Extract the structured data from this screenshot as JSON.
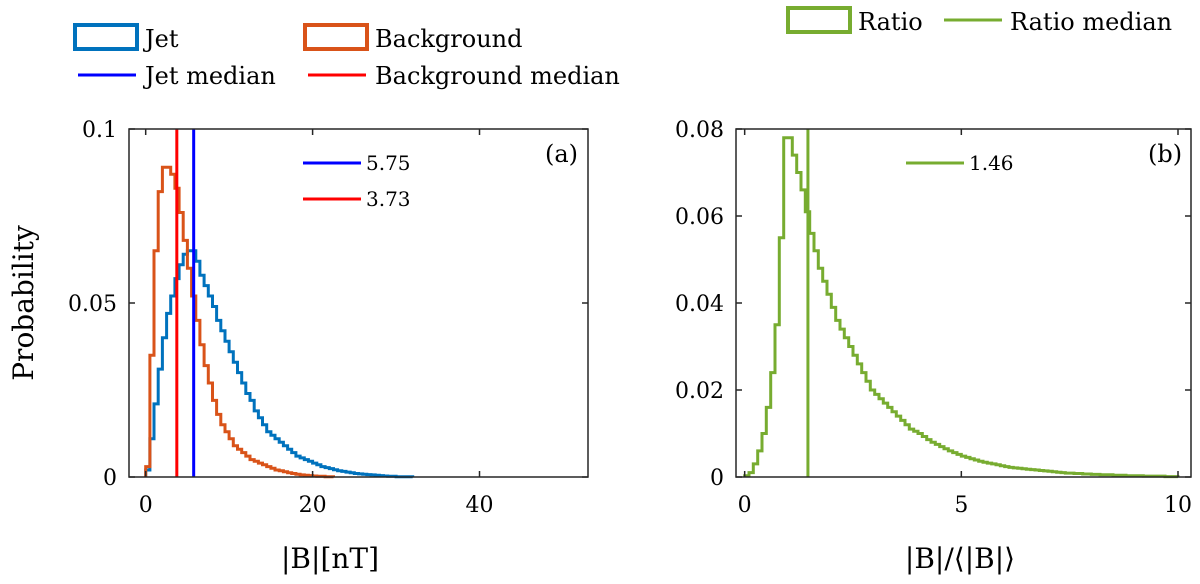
{
  "chart_data": [
    {
      "panel_label": "(a)",
      "type": "line",
      "subtype": "stairs-histogram",
      "xlabel": "|B|[nT]",
      "ylabel": "Probability",
      "xlim": [
        -2,
        53
      ],
      "ylim": [
        0,
        0.1
      ],
      "xticks": [
        0,
        20,
        40
      ],
      "xtick_labels": [
        "0",
        "20",
        "40"
      ],
      "yticks": [
        0,
        0.05,
        0.1
      ],
      "ytick_labels": [
        "0",
        "0.05",
        "0.1"
      ],
      "grid": false,
      "bin_width": 0.5,
      "series": [
        {
          "name": "Jet",
          "color": "#0072bd",
          "bin_edges_start": 0,
          "values": [
            0.002,
            0.011,
            0.021,
            0.031,
            0.04,
            0.047,
            0.052,
            0.057,
            0.061,
            0.064,
            0.065,
            0.065,
            0.062,
            0.058,
            0.055,
            0.052,
            0.049,
            0.045,
            0.042,
            0.039,
            0.036,
            0.033,
            0.03,
            0.027,
            0.024,
            0.022,
            0.019,
            0.017,
            0.015,
            0.013,
            0.012,
            0.011,
            0.01,
            0.009,
            0.008,
            0.007,
            0.006,
            0.0055,
            0.005,
            0.0045,
            0.004,
            0.0035,
            0.003,
            0.0027,
            0.0024,
            0.0021,
            0.0018,
            0.0016,
            0.0014,
            0.0012,
            0.001,
            0.0009,
            0.0008,
            0.0007,
            0.0006,
            0.0005,
            0.0004,
            0.0003,
            0.0002,
            0.0002,
            0.0001,
            0.0001,
            0.0001,
            0.0001
          ]
        },
        {
          "name": "Background",
          "color": "#d95319",
          "bin_edges_start": 0,
          "values": [
            0.003,
            0.035,
            0.065,
            0.082,
            0.089,
            0.089,
            0.087,
            0.083,
            0.076,
            0.068,
            0.06,
            0.052,
            0.045,
            0.038,
            0.032,
            0.027,
            0.022,
            0.018,
            0.015,
            0.013,
            0.011,
            0.009,
            0.008,
            0.007,
            0.006,
            0.005,
            0.0045,
            0.004,
            0.0035,
            0.003,
            0.0025,
            0.002,
            0.0018,
            0.0015,
            0.0012,
            0.001,
            0.0008,
            0.0006,
            0.0005,
            0.0004,
            0.0003,
            0.0002,
            0.0002,
            0.0001,
            0.0001
          ]
        }
      ],
      "medians": [
        {
          "name": "Jet median",
          "value": 5.75,
          "label": "5.75",
          "color": "#0000ff"
        },
        {
          "name": "Background median",
          "value": 3.73,
          "label": "3.73",
          "color": "#ff0000"
        }
      ]
    },
    {
      "panel_label": "(b)",
      "type": "line",
      "subtype": "stairs-histogram",
      "xlabel": "|B|/⟨|B|⟩",
      "ylabel": "",
      "xlim": [
        -0.2,
        10.3
      ],
      "ylim": [
        0,
        0.08
      ],
      "xticks": [
        0,
        5,
        10
      ],
      "xtick_labels": [
        "0",
        "5",
        "10"
      ],
      "yticks": [
        0,
        0.02,
        0.04,
        0.06,
        0.08
      ],
      "ytick_labels": [
        "0",
        "0.02",
        "0.04",
        "0.06",
        "0.08"
      ],
      "grid": false,
      "bin_width": 0.1,
      "series": [
        {
          "name": "Ratio",
          "color": "#77ac30",
          "bin_edges_start": 0,
          "values": [
            0.0003,
            0.001,
            0.003,
            0.006,
            0.01,
            0.016,
            0.024,
            0.035,
            0.055,
            0.078,
            0.078,
            0.074,
            0.07,
            0.066,
            0.061,
            0.056,
            0.052,
            0.048,
            0.045,
            0.042,
            0.039,
            0.036,
            0.034,
            0.032,
            0.03,
            0.028,
            0.026,
            0.024,
            0.022,
            0.02,
            0.019,
            0.018,
            0.017,
            0.016,
            0.015,
            0.014,
            0.013,
            0.012,
            0.011,
            0.0105,
            0.01,
            0.0093,
            0.0086,
            0.008,
            0.0075,
            0.007,
            0.0065,
            0.006,
            0.0056,
            0.0052,
            0.0048,
            0.0045,
            0.0042,
            0.0039,
            0.0036,
            0.0034,
            0.0032,
            0.003,
            0.0028,
            0.0026,
            0.0024,
            0.0022,
            0.0021,
            0.002,
            0.0019,
            0.0018,
            0.0017,
            0.0016,
            0.0015,
            0.0014,
            0.0013,
            0.0012,
            0.0011,
            0.001,
            0.0009,
            0.0009,
            0.0008,
            0.0008,
            0.0007,
            0.0007,
            0.0006,
            0.0006,
            0.0005,
            0.0005,
            0.0005,
            0.0004,
            0.0004,
            0.0004,
            0.0003,
            0.0003,
            0.0003,
            0.0003,
            0.0002,
            0.0002,
            0.0002,
            0.0002,
            0.0002,
            0.0001,
            0.0001,
            0.0001
          ]
        }
      ],
      "medians": [
        {
          "name": "Ratio median",
          "value": 1.46,
          "label": "1.46",
          "color": "#77ac30"
        }
      ]
    }
  ],
  "legend": {
    "jet": "Jet",
    "background": "Background",
    "jet_median": "Jet median",
    "background_median": "Background median",
    "ratio": "Ratio",
    "ratio_median": "Ratio median"
  }
}
